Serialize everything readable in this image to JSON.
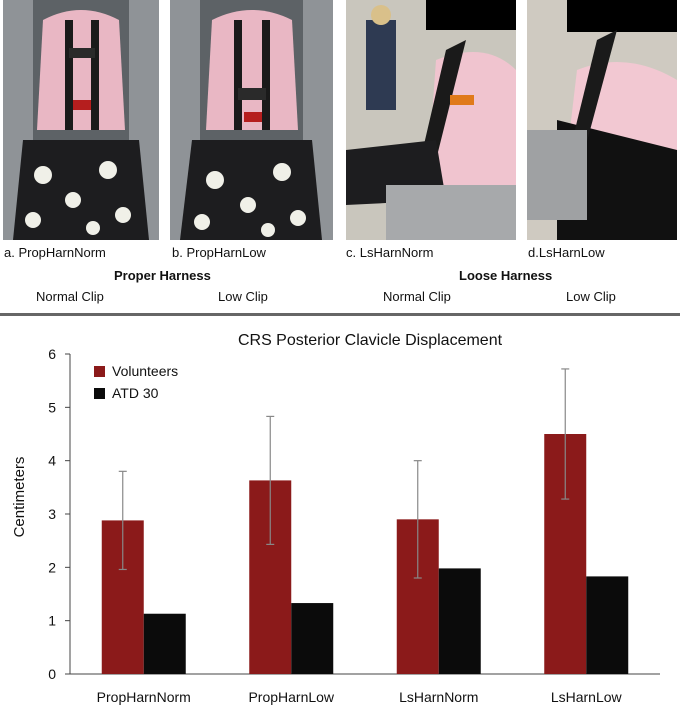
{
  "panels": [
    {
      "label": "a. PropHarnNorm"
    },
    {
      "label": "b. PropHarnLow"
    },
    {
      "label": "c. LsHarnNorm"
    },
    {
      "label": "d.LsHarnLow"
    }
  ],
  "groups": [
    {
      "title": "Proper Harness",
      "clips": [
        "Normal Clip",
        "Low Clip"
      ]
    },
    {
      "title": "Loose Harness",
      "clips": [
        "Normal Clip",
        "Low Clip"
      ]
    }
  ],
  "chart_data": {
    "type": "bar",
    "title": "CRS Posterior Clavicle Displacement",
    "xlabel": "",
    "ylabel": "Centimeters",
    "ylim": [
      0,
      6
    ],
    "yticks": [
      0,
      1,
      2,
      3,
      4,
      5,
      6
    ],
    "grid": false,
    "legend_position": "top-left",
    "categories": [
      "PropHarnNorm",
      "PropHarnLow",
      "LsHarnNorm",
      "LsHarnLow"
    ],
    "series": [
      {
        "name": "Volunteers",
        "color": "#8b1a1a",
        "values": [
          2.88,
          3.63,
          2.9,
          4.5
        ],
        "error": [
          0.92,
          1.2,
          1.1,
          1.22
        ]
      },
      {
        "name": "ATD 30",
        "color": "#0b0b0b",
        "values": [
          1.13,
          1.33,
          1.98,
          1.83
        ]
      }
    ]
  }
}
